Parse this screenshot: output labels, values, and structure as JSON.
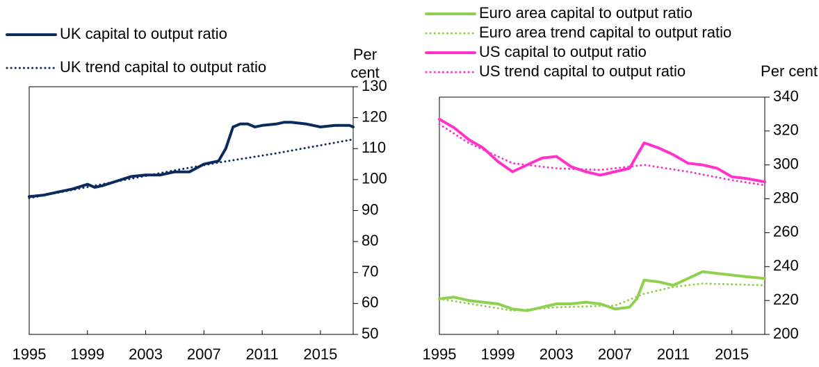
{
  "chart_data": [
    {
      "type": "line",
      "y_label": "Per cent",
      "xlim": [
        1995,
        2017.25
      ],
      "xticks": [
        1995,
        1999,
        2003,
        2007,
        2011,
        2015
      ],
      "ylim": [
        50,
        130
      ],
      "yticks": [
        50,
        60,
        70,
        80,
        90,
        100,
        110,
        120,
        130
      ],
      "series": [
        {
          "name": "UK capital to output ratio",
          "color": "#0b2a5e",
          "style": "solid",
          "x": [
            1995,
            1996,
            1997,
            1998,
            1999,
            1999.5,
            2000,
            2001,
            2002,
            2003,
            2004,
            2005,
            2006,
            2007,
            2008,
            2008.5,
            2009,
            2009.5,
            2010,
            2010.5,
            2011,
            2012,
            2012.5,
            2013,
            2014,
            2015,
            2016,
            2017,
            2017.25
          ],
          "values": [
            94.5,
            95,
            96,
            97,
            98.5,
            97.5,
            98,
            99.5,
            101,
            101.5,
            101.5,
            102.5,
            102.5,
            105,
            106,
            110,
            117,
            118,
            118,
            117,
            117.5,
            118,
            118.5,
            118.5,
            118,
            117,
            117.5,
            117.5,
            117
          ]
        },
        {
          "name": "UK trend capital to output ratio",
          "color": "#0b2a5e",
          "style": "dotted",
          "x": [
            1995,
            2000,
            2005,
            2008,
            2012,
            2017.25
          ],
          "values": [
            94,
            98.5,
            103,
            105.5,
            108.5,
            113
          ]
        }
      ]
    },
    {
      "type": "line",
      "y_label": "Per cent",
      "xlim": [
        1995,
        2017.25
      ],
      "xticks": [
        1995,
        1999,
        2003,
        2007,
        2011,
        2015
      ],
      "ylim": [
        200,
        340
      ],
      "yticks": [
        200,
        220,
        240,
        260,
        280,
        300,
        320,
        340
      ],
      "series": [
        {
          "name": "Euro area capital to output ratio",
          "color": "#8fd14f",
          "style": "solid",
          "x": [
            1995,
            1996,
            1997,
            1998,
            1999,
            2000,
            2001,
            2002,
            2003,
            2004,
            2005,
            2006,
            2007,
            2008,
            2008.5,
            2009,
            2010,
            2011,
            2012,
            2013,
            2014,
            2015,
            2016,
            2017.25
          ],
          "values": [
            221,
            222,
            220,
            219,
            218,
            215,
            214,
            216,
            218,
            218,
            219,
            218,
            215,
            216,
            221,
            232,
            231,
            229,
            233,
            237,
            236,
            235,
            234,
            233
          ]
        },
        {
          "name": "Euro area trend capital to output ratio",
          "color": "#8fd14f",
          "style": "dotted",
          "x": [
            1995,
            2000,
            2003,
            2007,
            2009,
            2011,
            2013,
            2017.25
          ],
          "values": [
            221,
            214,
            216,
            217,
            224,
            228,
            230,
            229
          ]
        },
        {
          "name": "US  capital to output ratio",
          "color": "#ff33cc",
          "style": "solid",
          "x": [
            1995,
            1996,
            1997,
            1998,
            1999,
            2000,
            2001,
            2002,
            2003,
            2004,
            2005,
            2006,
            2007,
            2008,
            2009,
            2010,
            2011,
            2012,
            2013,
            2014,
            2015,
            2016,
            2017.25
          ],
          "values": [
            327,
            322,
            315,
            310,
            302,
            296,
            300,
            304,
            305,
            299,
            296,
            294,
            296,
            298,
            313,
            310,
            306,
            301,
            300,
            298,
            293,
            292,
            290
          ]
        },
        {
          "name": "US trend capital to output ratio",
          "color": "#ff33cc",
          "style": "dotted",
          "x": [
            1995,
            1997,
            2000,
            2003,
            2006,
            2009,
            2012,
            2015,
            2017.25
          ],
          "values": [
            324,
            313,
            301,
            298,
            297,
            300,
            296,
            291,
            288
          ]
        }
      ]
    }
  ]
}
